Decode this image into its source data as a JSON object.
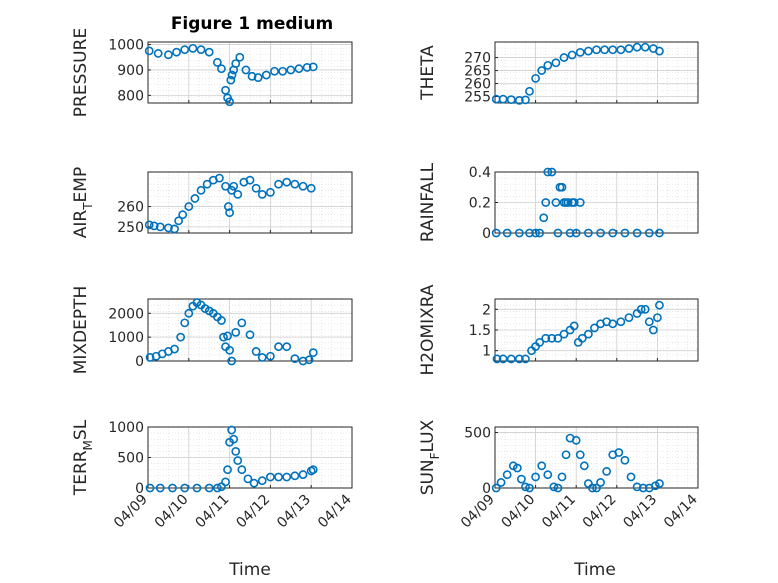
{
  "figure": {
    "title": "Figure 1 medium",
    "xlabel": "Time"
  },
  "colors": {
    "marker": "#0072BD",
    "grid": "#dcdcdc",
    "axis": "#262626"
  },
  "chart_data": [
    {
      "type": "scatter",
      "ylabel": "PRESSURE",
      "ylim": [
        770,
        1010
      ],
      "yticks": [
        800,
        900,
        1000
      ],
      "xlim": [
        0,
        5
      ],
      "xticks": [],
      "x": [
        0.03,
        0.25,
        0.5,
        0.7,
        0.9,
        1.1,
        1.3,
        1.5,
        1.7,
        1.8,
        1.9,
        1.95,
        2.0,
        2.03,
        2.06,
        2.1,
        2.15,
        2.25,
        2.4,
        2.55,
        2.7,
        2.9,
        3.1,
        3.3,
        3.5,
        3.7,
        3.9,
        4.05
      ],
      "values": [
        975,
        965,
        960,
        970,
        980,
        985,
        980,
        970,
        930,
        905,
        820,
        790,
        775,
        860,
        880,
        900,
        925,
        950,
        900,
        875,
        870,
        880,
        895,
        895,
        900,
        905,
        910,
        912
      ]
    },
    {
      "type": "scatter",
      "ylabel": "THETA",
      "ylim": [
        252.5,
        276
      ],
      "yticks": [
        255,
        260,
        265,
        270
      ],
      "xlim": [
        0,
        5
      ],
      "xticks": [],
      "x": [
        0.03,
        0.2,
        0.4,
        0.6,
        0.75,
        0.85,
        1.0,
        1.15,
        1.3,
        1.5,
        1.7,
        1.9,
        2.1,
        2.3,
        2.5,
        2.7,
        2.9,
        3.1,
        3.3,
        3.5,
        3.7,
        3.9,
        4.05
      ],
      "values": [
        254,
        254,
        253.8,
        253.5,
        253.7,
        257,
        262,
        265,
        267,
        268,
        270,
        271,
        272,
        272.5,
        273,
        273,
        273,
        273,
        273.5,
        274,
        274,
        273.5,
        272.5
      ]
    },
    {
      "type": "scatter",
      "ylabel": "AIR_TEMP",
      "ylim": [
        247,
        277
      ],
      "yticks": [
        250,
        260
      ],
      "xlim": [
        0,
        5
      ],
      "xticks": [],
      "x": [
        0.03,
        0.15,
        0.3,
        0.5,
        0.65,
        0.75,
        0.85,
        1.0,
        1.15,
        1.3,
        1.45,
        1.6,
        1.75,
        1.9,
        1.97,
        2.0,
        2.05,
        2.1,
        2.2,
        2.35,
        2.5,
        2.65,
        2.8,
        3.0,
        3.2,
        3.4,
        3.6,
        3.8,
        4.0
      ],
      "values": [
        251,
        250.5,
        250,
        249.5,
        249,
        253,
        256,
        260,
        264,
        268,
        271,
        273,
        274,
        270,
        260,
        257,
        268,
        270,
        266,
        272,
        273,
        269,
        266,
        267,
        271,
        272,
        271,
        270,
        269
      ]
    },
    {
      "type": "scatter",
      "ylabel": "RAINFALL",
      "ylim": [
        0,
        0.4
      ],
      "yticks": [
        0,
        0.2,
        0.4
      ],
      "xlim": [
        0,
        5
      ],
      "xticks": [],
      "x": [
        0.03,
        0.3,
        0.6,
        0.85,
        1.0,
        1.1,
        1.2,
        1.25,
        1.3,
        1.4,
        1.5,
        1.55,
        1.6,
        1.65,
        1.7,
        1.75,
        1.8,
        1.85,
        1.9,
        1.95,
        2.0,
        2.1,
        2.3,
        2.6,
        2.9,
        3.2,
        3.5,
        3.8,
        4.05
      ],
      "values": [
        0,
        0,
        0,
        0,
        0,
        0,
        0.1,
        0.2,
        0.4,
        0.4,
        0.2,
        0,
        0.3,
        0.3,
        0.2,
        0.2,
        0.2,
        0,
        0.2,
        0.2,
        0,
        0.2,
        0,
        0,
        0,
        0,
        0,
        0,
        0
      ]
    },
    {
      "type": "scatter",
      "ylabel": "MIXDEPTH",
      "ylim": [
        0,
        2600
      ],
      "yticks": [
        0,
        1000,
        2000
      ],
      "xlim": [
        0,
        5
      ],
      "xticks": [],
      "x": [
        0.05,
        0.2,
        0.35,
        0.5,
        0.65,
        0.8,
        0.9,
        1.0,
        1.1,
        1.2,
        1.3,
        1.4,
        1.5,
        1.6,
        1.7,
        1.8,
        1.85,
        1.9,
        1.95,
        2.0,
        2.05,
        2.15,
        2.3,
        2.5,
        2.65,
        2.8,
        3.0,
        3.2,
        3.4,
        3.6,
        3.8,
        3.95,
        4.05
      ],
      "values": [
        150,
        200,
        300,
        400,
        500,
        1000,
        1600,
        2000,
        2300,
        2450,
        2350,
        2200,
        2100,
        2000,
        1850,
        1700,
        1000,
        600,
        1050,
        450,
        0,
        1200,
        1600,
        1100,
        400,
        150,
        200,
        600,
        600,
        100,
        0,
        50,
        350
      ]
    },
    {
      "type": "scatter",
      "ylabel": "H2OMIXRA",
      "ylim": [
        0.75,
        2.25
      ],
      "yticks": [
        1,
        1.5,
        2
      ],
      "xlim": [
        0,
        5
      ],
      "xticks": [],
      "x": [
        0.05,
        0.2,
        0.4,
        0.6,
        0.75,
        0.9,
        1.0,
        1.1,
        1.25,
        1.4,
        1.55,
        1.7,
        1.85,
        1.95,
        2.05,
        2.15,
        2.3,
        2.45,
        2.6,
        2.75,
        2.9,
        3.1,
        3.3,
        3.5,
        3.6,
        3.7,
        3.8,
        3.9,
        4.0,
        4.05
      ],
      "values": [
        0.8,
        0.8,
        0.8,
        0.8,
        0.8,
        1.0,
        1.1,
        1.2,
        1.3,
        1.3,
        1.3,
        1.4,
        1.5,
        1.6,
        1.2,
        1.3,
        1.4,
        1.55,
        1.65,
        1.7,
        1.65,
        1.7,
        1.8,
        1.9,
        2.0,
        2.0,
        1.7,
        1.5,
        1.8,
        2.1
      ]
    },
    {
      "type": "scatter",
      "ylabel": "TERR_MSL",
      "ylim": [
        0,
        1000
      ],
      "yticks": [
        0,
        500,
        1000
      ],
      "xlim": [
        0,
        5
      ],
      "xticks": [
        "04/09",
        "04/10",
        "04/11",
        "04/12",
        "04/13",
        "04/14"
      ],
      "x": [
        0.05,
        0.3,
        0.6,
        0.9,
        1.2,
        1.5,
        1.7,
        1.8,
        1.9,
        1.95,
        2.0,
        2.05,
        2.1,
        2.15,
        2.2,
        2.3,
        2.45,
        2.6,
        2.8,
        3.0,
        3.2,
        3.4,
        3.6,
        3.8,
        4.0,
        4.05
      ],
      "values": [
        0,
        0,
        0,
        0,
        0,
        0,
        0,
        20,
        100,
        300,
        750,
        950,
        800,
        600,
        450,
        300,
        150,
        80,
        120,
        180,
        180,
        180,
        200,
        220,
        280,
        300
      ]
    },
    {
      "type": "scatter",
      "ylabel": "SUN_FLUX",
      "ylim": [
        0,
        550
      ],
      "yticks": [
        0,
        500
      ],
      "xlim": [
        0,
        5
      ],
      "xticks": [
        "04/09",
        "04/10",
        "04/11",
        "04/12",
        "04/13",
        "04/14"
      ],
      "x": [
        0.03,
        0.15,
        0.3,
        0.45,
        0.55,
        0.65,
        0.75,
        0.85,
        1.0,
        1.15,
        1.3,
        1.45,
        1.55,
        1.65,
        1.75,
        1.85,
        2.0,
        2.1,
        2.2,
        2.3,
        2.4,
        2.5,
        2.6,
        2.75,
        2.9,
        3.05,
        3.2,
        3.35,
        3.5,
        3.65,
        3.8,
        3.95,
        4.05
      ],
      "values": [
        0,
        50,
        120,
        200,
        180,
        80,
        10,
        0,
        100,
        200,
        120,
        10,
        0,
        100,
        300,
        450,
        430,
        300,
        200,
        40,
        0,
        0,
        50,
        150,
        300,
        320,
        250,
        100,
        10,
        0,
        0,
        20,
        40
      ]
    }
  ]
}
